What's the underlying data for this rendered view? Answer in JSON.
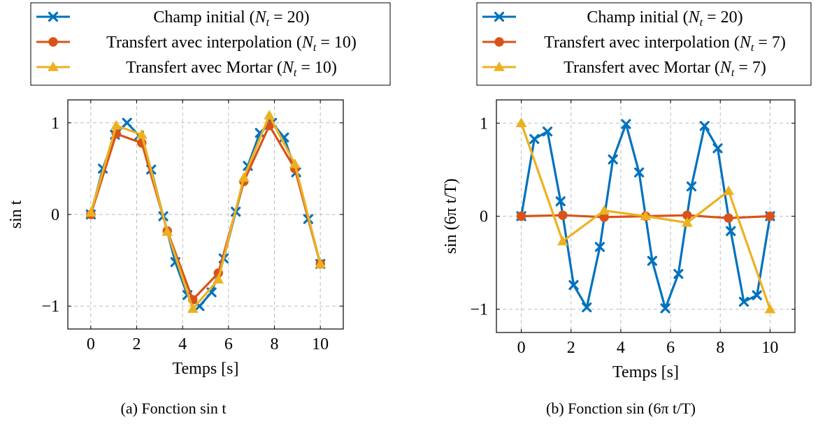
{
  "colors": {
    "blue": "#0072BD",
    "red": "#D95319",
    "yellow": "#EDB120"
  },
  "chart_data": [
    {
      "type": "line",
      "caption": "(a) Fonction sin t",
      "xlabel": "Temps [s]",
      "ylabel": "sin t",
      "xlim": [
        -1,
        11
      ],
      "ylim": [
        -1.25,
        1.25
      ],
      "xticks": [
        0,
        2,
        4,
        6,
        8,
        10
      ],
      "xtick_labels": [
        "0",
        "2",
        "4",
        "6",
        "8",
        "10"
      ],
      "yticks": [
        -1,
        0,
        1
      ],
      "ytick_labels": [
        "−1",
        "0",
        "1"
      ],
      "grid": true,
      "legend_position": "above",
      "series": [
        {
          "name": "Champ initial (N_t = 20)",
          "legend_main": "Champ initial (",
          "legend_sub": "t",
          "legend_value": " = 20)",
          "color": "#0072BD",
          "marker": "x",
          "x": [
            0,
            0.526,
            1.053,
            1.579,
            2.105,
            2.632,
            3.158,
            3.684,
            4.211,
            4.737,
            5.263,
            5.789,
            6.316,
            6.842,
            7.368,
            7.895,
            8.421,
            8.947,
            9.474,
            10
          ],
          "y": [
            0,
            0.5,
            0.87,
            1.0,
            0.86,
            0.49,
            -0.02,
            -0.52,
            -0.88,
            -1.0,
            -0.85,
            -0.48,
            0.03,
            0.53,
            0.89,
            1.0,
            0.84,
            0.46,
            -0.05,
            -0.54
          ]
        },
        {
          "name": "Transfert avec interpolation (N_t = 10)",
          "legend_main": "Transfert avec interpolation (",
          "legend_sub": "t",
          "legend_value": " = 10)",
          "color": "#D95319",
          "marker": "o",
          "x": [
            0,
            1.111,
            2.222,
            3.333,
            4.444,
            5.556,
            6.667,
            7.778,
            8.889,
            10
          ],
          "y": [
            0,
            0.88,
            0.78,
            -0.18,
            -0.93,
            -0.64,
            0.36,
            0.97,
            0.5,
            -0.54
          ]
        },
        {
          "name": "Transfert avec Mortar (N_t = 10)",
          "legend_main": "Transfert avec Mortar (",
          "legend_sub": "t",
          "legend_value": " = 10)",
          "color": "#EDB120",
          "marker": "triangle",
          "x": [
            0,
            1.111,
            2.222,
            3.333,
            4.444,
            5.556,
            6.667,
            7.778,
            8.889,
            10
          ],
          "y": [
            0.02,
            0.97,
            0.87,
            -0.19,
            -1.03,
            -0.71,
            0.4,
            1.08,
            0.55,
            -0.54
          ]
        }
      ]
    },
    {
      "type": "line",
      "caption": "(b) Fonction sin (6π t/T)",
      "xlabel": "Temps [s]",
      "ylabel": "sin (6π t/T)",
      "xlim": [
        -1,
        11
      ],
      "ylim": [
        -1.25,
        1.25
      ],
      "xticks": [
        0,
        2,
        4,
        6,
        8,
        10
      ],
      "xtick_labels": [
        "0",
        "2",
        "4",
        "6",
        "8",
        "10"
      ],
      "yticks": [
        -1,
        0,
        1
      ],
      "ytick_labels": [
        "−1",
        "0",
        "1"
      ],
      "grid": true,
      "legend_position": "above",
      "series": [
        {
          "name": "Champ initial (N_t = 20)",
          "legend_main": "Champ initial (",
          "legend_sub": "t",
          "legend_value": " = 20)",
          "color": "#0072BD",
          "marker": "x",
          "x": [
            0,
            0.526,
            1.053,
            1.579,
            2.105,
            2.632,
            3.158,
            3.684,
            4.211,
            4.737,
            5.263,
            5.789,
            6.316,
            6.842,
            7.368,
            7.895,
            8.421,
            8.947,
            9.474,
            10
          ],
          "y": [
            0,
            0.83,
            0.91,
            0.16,
            -0.74,
            -0.98,
            -0.33,
            0.61,
            0.99,
            0.47,
            -0.48,
            -0.99,
            -0.62,
            0.32,
            0.97,
            0.73,
            -0.16,
            -0.92,
            -0.85,
            0
          ]
        },
        {
          "name": "Transfert avec interpolation (N_t = 7)",
          "legend_main": "Transfert avec interpolation (",
          "legend_sub": "t",
          "legend_value": " = 7)",
          "color": "#D95319",
          "marker": "o",
          "x": [
            0,
            1.667,
            3.333,
            5,
            6.667,
            8.333,
            10
          ],
          "y": [
            0,
            0.01,
            -0.01,
            0,
            0.01,
            -0.02,
            0
          ]
        },
        {
          "name": "Transfert avec Mortar (N_t = 7)",
          "legend_main": "Transfert avec Mortar (",
          "legend_sub": "t",
          "legend_value": " = 7)",
          "color": "#EDB120",
          "marker": "triangle",
          "x": [
            0,
            1.667,
            3.333,
            5,
            6.667,
            8.333,
            10
          ],
          "y": [
            1.0,
            -0.27,
            0.06,
            0.0,
            -0.07,
            0.27,
            -1.0
          ]
        }
      ]
    }
  ]
}
